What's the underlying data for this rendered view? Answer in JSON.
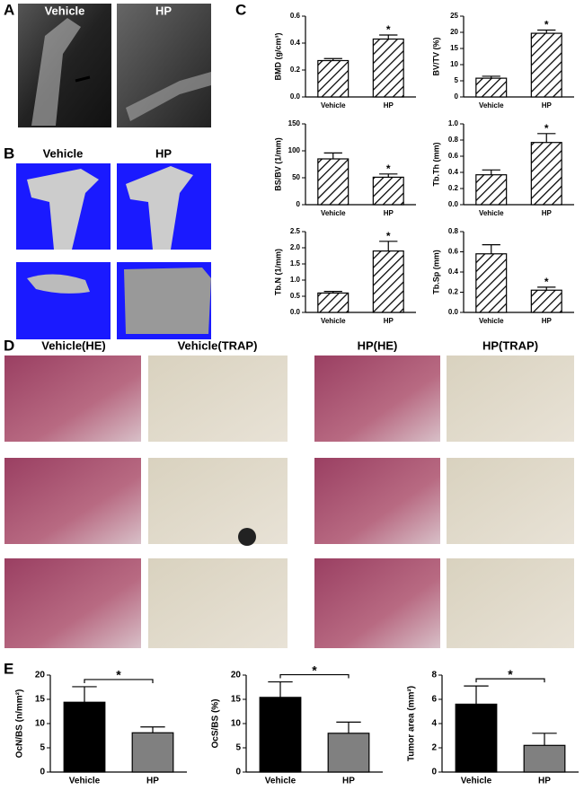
{
  "panel_labels": [
    "A",
    "B",
    "C",
    "D",
    "E"
  ],
  "panel_a": {
    "labels": [
      "Vehicle",
      "HP"
    ]
  },
  "panel_b": {
    "labels": [
      "Vehicle",
      "HP"
    ]
  },
  "panel_d": {
    "labels": [
      "Vehicle(HE)",
      "Vehicle(TRAP)",
      "HP(HE)",
      "HP(TRAP)"
    ]
  },
  "chart_data": [
    {
      "type": "bar",
      "ylabel": "BMD (g/cm³)",
      "categories": [
        "Vehicle",
        "HP"
      ],
      "values": [
        0.27,
        0.43
      ],
      "errors": [
        0.015,
        0.03
      ],
      "hatch": true,
      "ylim": [
        0,
        0.6
      ],
      "yticks": [
        {
          "value": 0,
          "label": "0.0"
        },
        0.2,
        0.4,
        0.6
      ],
      "annotations": [
        {
          "text": "*",
          "category": "HP"
        }
      ]
    },
    {
      "type": "bar",
      "ylabel": "BV/TV (%)",
      "categories": [
        "Vehicle",
        "HP"
      ],
      "values": [
        5.8,
        19.7
      ],
      "errors": [
        0.6,
        1.0
      ],
      "hatch": true,
      "ylim": [
        0,
        25
      ],
      "yticks": [
        0,
        5,
        10,
        15,
        20,
        25
      ],
      "annotations": [
        {
          "text": "*",
          "category": "HP"
        }
      ]
    },
    {
      "type": "bar",
      "ylabel": "BS/BV (1/mm)",
      "categories": [
        "Vehicle",
        "HP"
      ],
      "values": [
        85,
        51
      ],
      "errors": [
        11,
        6
      ],
      "hatch": true,
      "ylim": [
        0,
        150
      ],
      "yticks": [
        0,
        50,
        100,
        150
      ],
      "annotations": [
        {
          "text": "*",
          "category": "HP"
        }
      ]
    },
    {
      "type": "bar",
      "ylabel": "Tb.Th (mm)",
      "categories": [
        "Vehicle",
        "HP"
      ],
      "values": [
        0.37,
        0.77
      ],
      "errors": [
        0.06,
        0.11
      ],
      "hatch": true,
      "ylim": [
        0,
        1.0
      ],
      "yticks": [
        {
          "value": 0,
          "label": "0.0"
        },
        0.2,
        0.4,
        0.6,
        0.8,
        {
          "value": 1.0,
          "label": "1.0"
        }
      ],
      "annotations": [
        {
          "text": "*",
          "category": "HP"
        }
      ]
    },
    {
      "type": "bar",
      "ylabel": "Tb.N (1/mm)",
      "categories": [
        "Vehicle",
        "HP"
      ],
      "values": [
        0.6,
        1.9
      ],
      "errors": [
        0.05,
        0.3
      ],
      "hatch": true,
      "ylim": [
        0,
        2.5
      ],
      "yticks": [
        {
          "value": 0,
          "label": "0.0"
        },
        0.5,
        {
          "value": 1.0,
          "label": "1.0"
        },
        1.5,
        {
          "value": 2.0,
          "label": "2.0"
        },
        2.5
      ],
      "annotations": [
        {
          "text": "*",
          "category": "HP"
        }
      ]
    },
    {
      "type": "bar",
      "ylabel": "Tb.Sp (mm)",
      "categories": [
        "Vehicle",
        "HP"
      ],
      "values": [
        0.58,
        0.22
      ],
      "errors": [
        0.09,
        0.03
      ],
      "hatch": true,
      "ylim": [
        0,
        0.8
      ],
      "yticks": [
        {
          "value": 0,
          "label": "0.0"
        },
        0.2,
        0.4,
        0.6,
        0.8
      ],
      "annotations": [
        {
          "text": "*",
          "category": "HP"
        }
      ]
    },
    {
      "type": "bar",
      "ylabel": "OcN/BS (n/mm²)",
      "categories": [
        "Vehicle",
        "HP"
      ],
      "values": [
        14.4,
        8.1
      ],
      "errors": [
        3.2,
        1.2
      ],
      "colors": [
        "#000000",
        "#808080"
      ],
      "ylim": [
        0,
        20
      ],
      "yticks": [
        0,
        5,
        10,
        15,
        20
      ],
      "annotations": [
        {
          "text": "*",
          "between": [
            "Vehicle",
            "HP"
          ]
        }
      ]
    },
    {
      "type": "bar",
      "ylabel": "OcS/BS (%)",
      "categories": [
        "Vehicle",
        "HP"
      ],
      "values": [
        15.4,
        8.0
      ],
      "errors": [
        3.2,
        2.3
      ],
      "colors": [
        "#000000",
        "#808080"
      ],
      "ylim": [
        0,
        20
      ],
      "yticks": [
        0,
        5,
        10,
        15,
        20
      ],
      "annotations": [
        {
          "text": "*",
          "between": [
            "Vehicle",
            "HP"
          ]
        }
      ]
    },
    {
      "type": "bar",
      "ylabel": "Tumor area (mm²)",
      "categories": [
        "Vehicle",
        "HP"
      ],
      "values": [
        5.6,
        2.2
      ],
      "errors": [
        1.5,
        1.0
      ],
      "colors": [
        "#000000",
        "#808080"
      ],
      "ylim": [
        0,
        8
      ],
      "yticks": [
        0,
        2,
        4,
        6,
        8
      ],
      "annotations": [
        {
          "text": "*",
          "between": [
            "Vehicle",
            "HP"
          ]
        }
      ]
    }
  ]
}
